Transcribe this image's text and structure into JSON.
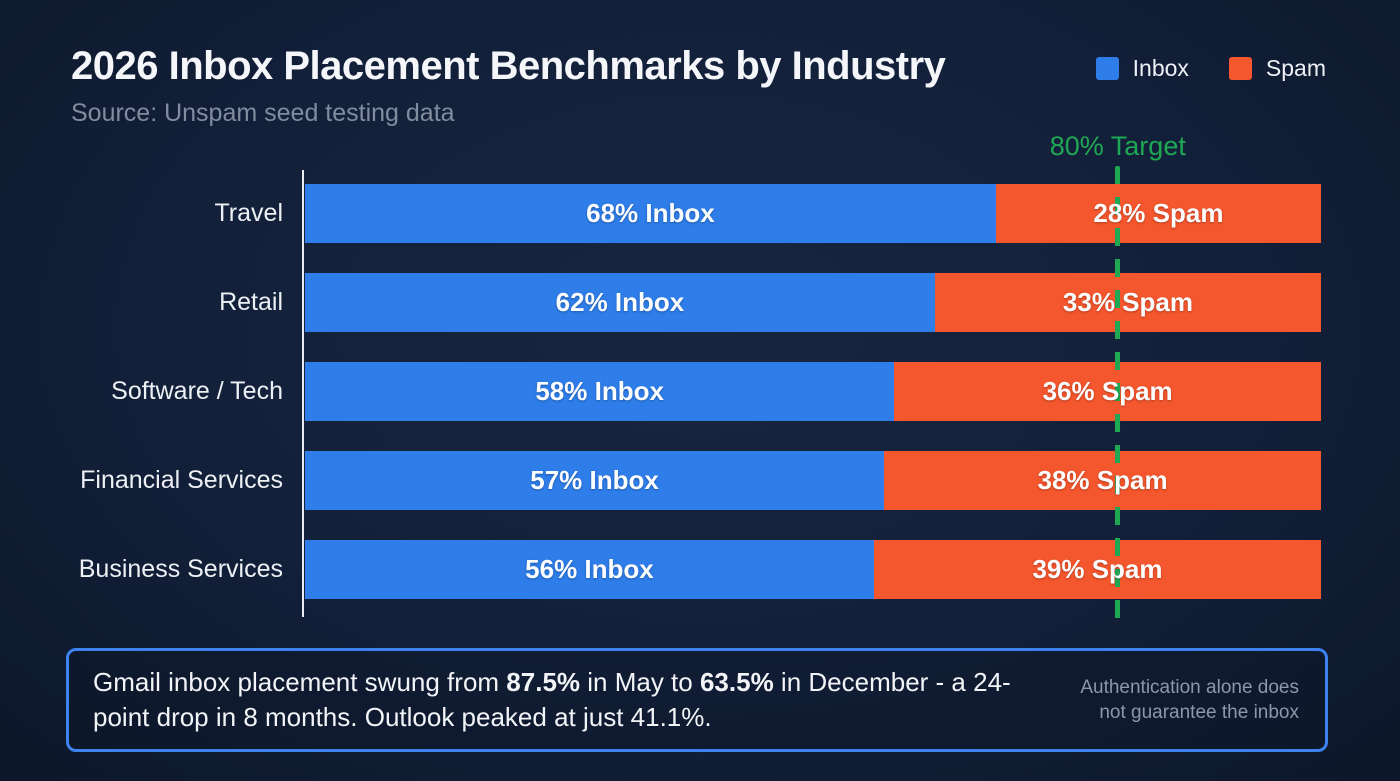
{
  "header": {
    "title": "2026 Inbox Placement Benchmarks by Industry",
    "subtitle": "Source: Unspam seed testing data"
  },
  "legend": {
    "items": [
      {
        "label": "Inbox",
        "name": "legend-swatch-inbox",
        "color": "#2e7de9"
      },
      {
        "label": "Spam",
        "name": "legend-swatch-spam",
        "color": "#f4562d"
      }
    ]
  },
  "colors": {
    "inbox": "#2e7de9",
    "spam": "#f4562d",
    "target_green": "#1fa854",
    "axis": "#e9edf3",
    "background": "#13203a",
    "footer_border": "#3e82f0"
  },
  "chart_data": {
    "type": "bar",
    "orientation": "horizontal-stacked",
    "title": "2026 Inbox Placement Benchmarks by Industry",
    "subtitle": "Source: Unspam seed testing data",
    "categories": [
      "Travel",
      "Retail",
      "Software / Tech",
      "Financial Services",
      "Business Services"
    ],
    "series": [
      {
        "name": "Inbox",
        "values": [
          68,
          62,
          58,
          57,
          56
        ],
        "color": "#2e7de9"
      },
      {
        "name": "Spam",
        "values": [
          28,
          33,
          36,
          38,
          39
        ],
        "color": "#f4562d"
      }
    ],
    "xlim": [
      0,
      100
    ],
    "grid": false,
    "legend_position": "top-right",
    "target_line": {
      "value": 80,
      "label": "80% Target",
      "color": "#1fa854",
      "style": "dashed"
    },
    "rows": [
      {
        "category": "Travel",
        "inbox": 68,
        "spam": 28,
        "inbox_label": "68% Inbox",
        "spam_label": "28% Spam"
      },
      {
        "category": "Retail",
        "inbox": 62,
        "spam": 33,
        "inbox_label": "62% Inbox",
        "spam_label": "33% Spam"
      },
      {
        "category": "Software / Tech",
        "inbox": 58,
        "spam": 36,
        "inbox_label": "58% Inbox",
        "spam_label": "36% Spam"
      },
      {
        "category": "Financial Services",
        "inbox": 57,
        "spam": 38,
        "inbox_label": "57% Inbox",
        "spam_label": "38% Spam"
      },
      {
        "category": "Business Services",
        "inbox": 56,
        "spam": 39,
        "inbox_label": "56% Inbox",
        "spam_label": "39% Spam"
      }
    ]
  },
  "footer": {
    "note_segments": [
      {
        "text": "Gmail inbox placement swung from ",
        "bold": false
      },
      {
        "text": "87.5%",
        "bold": true
      },
      {
        "text": " in May to ",
        "bold": false
      },
      {
        "text": "63.5%",
        "bold": true
      },
      {
        "text": " in December - a 24-point drop in 8 months. Outlook peaked at just 41.1%.",
        "bold": false
      }
    ],
    "side_note": "Authentication alone does\nnot guarantee the inbox"
  }
}
